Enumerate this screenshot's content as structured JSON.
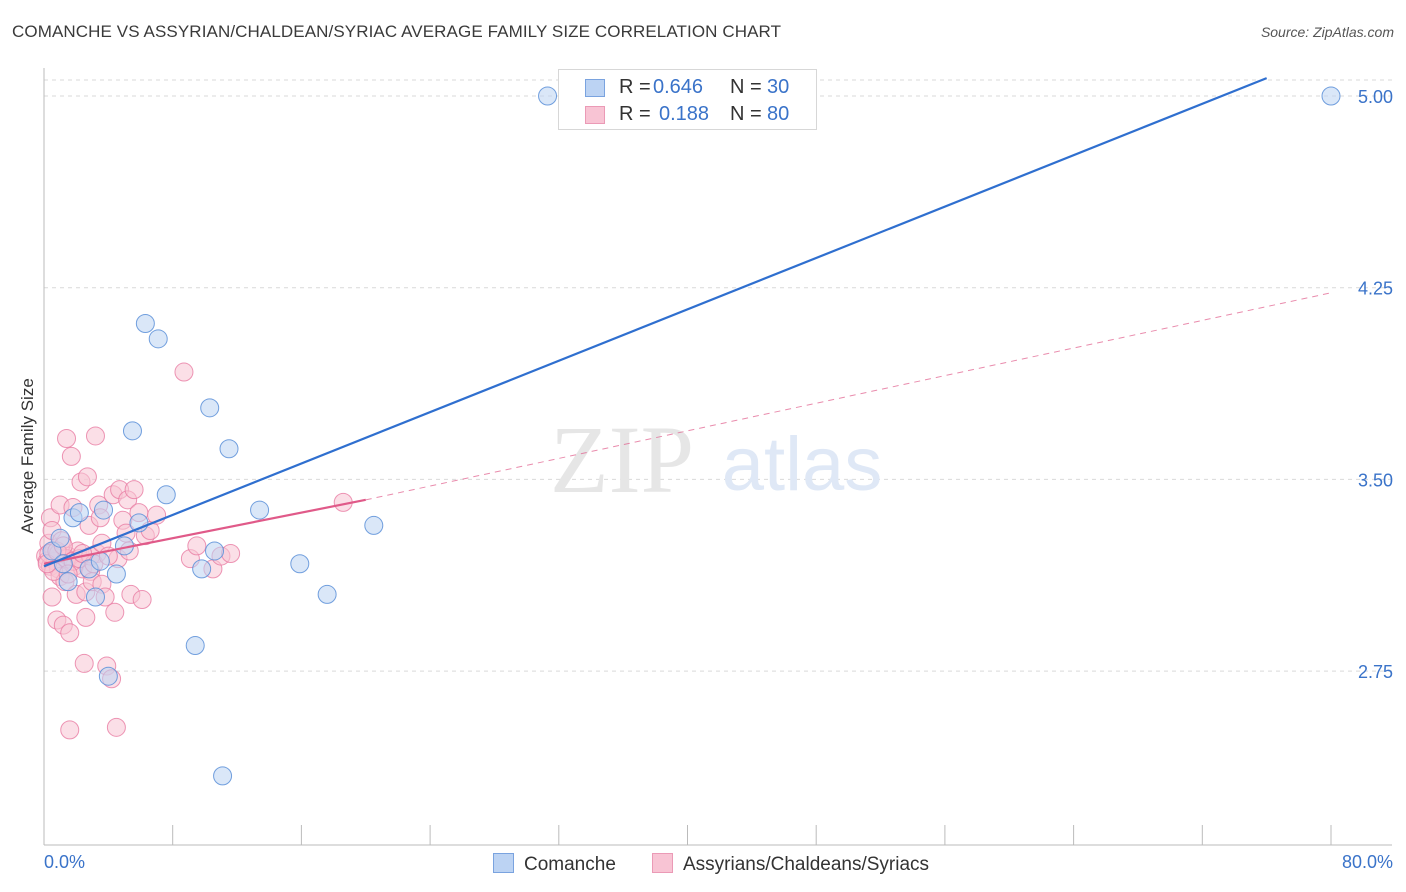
{
  "title": "COMANCHE VS ASSYRIAN/CHALDEAN/SYRIAC AVERAGE FAMILY SIZE CORRELATION CHART",
  "source": "Source: ZipAtlas.com",
  "watermark": {
    "zip": "ZIP",
    "atlas": "atlas"
  },
  "colors": {
    "blue": "#5b8fd8",
    "blue_fill": "#bcd3f3",
    "blue_line": "#2f6fcf",
    "pink": "#e87ca2",
    "pink_fill": "#f8c4d4",
    "pink_line": "#e05a89",
    "axis_text": "#3a73c9",
    "grid": "#d9d9d9"
  },
  "legend": {
    "rows": [
      {
        "r_label": "R =",
        "r_value": "0.646",
        "n_label": "N =",
        "n_value": "30"
      },
      {
        "r_label": "R =",
        "r_value": "0.188",
        "n_label": "N =",
        "n_value": "80"
      }
    ]
  },
  "bottom_legend": [
    {
      "label": "Comanche"
    },
    {
      "label": "Assyrians/Chaldeans/Syriacs"
    }
  ],
  "chart_data": {
    "type": "scatter",
    "title": "COMANCHE VS ASSYRIAN/CHALDEAN/SYRIAC AVERAGE FAMILY SIZE CORRELATION CHART",
    "xlabel": "",
    "ylabel": "Average Family Size",
    "xlim": [
      0,
      80
    ],
    "ylim": [
      2.0,
      5.1
    ],
    "x_tick_labels": [
      "0.0%",
      "80.0%"
    ],
    "y_ticks": [
      2.75,
      3.5,
      4.25,
      5.0
    ],
    "y_tick_labels": [
      "2.75",
      "3.50",
      "4.25",
      "5.00"
    ],
    "grid": true,
    "series": [
      {
        "name": "Comanche",
        "color": "#5b8fd8",
        "points": [
          [
            0.5,
            3.22
          ],
          [
            1.0,
            3.27
          ],
          [
            1.5,
            3.1
          ],
          [
            1.8,
            3.35
          ],
          [
            2.2,
            3.37
          ],
          [
            2.8,
            3.15
          ],
          [
            3.2,
            3.04
          ],
          [
            3.5,
            3.18
          ],
          [
            3.7,
            3.38
          ],
          [
            4.0,
            2.73
          ],
          [
            4.5,
            3.13
          ],
          [
            5.0,
            3.24
          ],
          [
            5.5,
            3.69
          ],
          [
            5.9,
            3.33
          ],
          [
            6.3,
            4.11
          ],
          [
            7.1,
            4.05
          ],
          [
            7.6,
            3.44
          ],
          [
            9.4,
            2.85
          ],
          [
            9.8,
            3.15
          ],
          [
            10.3,
            3.78
          ],
          [
            10.6,
            3.22
          ],
          [
            11.1,
            2.34
          ],
          [
            11.5,
            3.62
          ],
          [
            13.4,
            3.38
          ],
          [
            15.9,
            3.17
          ],
          [
            17.6,
            3.05
          ],
          [
            20.5,
            3.32
          ],
          [
            31.3,
            5.0
          ],
          [
            80.0,
            5.0
          ],
          [
            1.2,
            3.17
          ]
        ],
        "trend": {
          "x": [
            0,
            76
          ],
          "y": [
            3.16,
            5.07
          ]
        }
      },
      {
        "name": "Assyrians/Chaldeans/Syriacs",
        "color": "#e87ca2",
        "points": [
          [
            0.1,
            3.2
          ],
          [
            0.2,
            3.18
          ],
          [
            0.3,
            3.25
          ],
          [
            0.4,
            3.35
          ],
          [
            0.4,
            3.16
          ],
          [
            0.5,
            3.3
          ],
          [
            0.5,
            3.04
          ],
          [
            0.6,
            3.22
          ],
          [
            0.7,
            3.18
          ],
          [
            0.8,
            2.95
          ],
          [
            0.9,
            3.15
          ],
          [
            1.0,
            3.4
          ],
          [
            1.0,
            3.12
          ],
          [
            1.1,
            3.26
          ],
          [
            1.2,
            2.93
          ],
          [
            1.3,
            3.1
          ],
          [
            1.4,
            3.66
          ],
          [
            1.5,
            3.2
          ],
          [
            1.6,
            2.52
          ],
          [
            1.6,
            2.9
          ],
          [
            1.7,
            3.59
          ],
          [
            1.8,
            3.39
          ],
          [
            1.9,
            3.16
          ],
          [
            2.0,
            3.05
          ],
          [
            2.1,
            3.22
          ],
          [
            2.3,
            3.49
          ],
          [
            2.4,
            3.15
          ],
          [
            2.5,
            2.78
          ],
          [
            2.6,
            3.06
          ],
          [
            2.6,
            2.96
          ],
          [
            2.7,
            3.51
          ],
          [
            2.8,
            3.32
          ],
          [
            2.9,
            3.14
          ],
          [
            3.0,
            3.1
          ],
          [
            3.2,
            3.67
          ],
          [
            3.3,
            3.21
          ],
          [
            3.4,
            3.4
          ],
          [
            3.5,
            3.35
          ],
          [
            3.6,
            3.09
          ],
          [
            3.8,
            3.04
          ],
          [
            3.9,
            2.77
          ],
          [
            4.2,
            2.72
          ],
          [
            4.3,
            3.44
          ],
          [
            4.4,
            2.98
          ],
          [
            4.5,
            2.53
          ],
          [
            4.6,
            3.19
          ],
          [
            4.7,
            3.46
          ],
          [
            4.9,
            3.34
          ],
          [
            5.1,
            3.29
          ],
          [
            5.2,
            3.42
          ],
          [
            5.4,
            3.05
          ],
          [
            5.6,
            3.46
          ],
          [
            5.9,
            3.37
          ],
          [
            6.1,
            3.03
          ],
          [
            6.3,
            3.28
          ],
          [
            6.6,
            3.3
          ],
          [
            7.0,
            3.36
          ],
          [
            8.7,
            3.92
          ],
          [
            9.1,
            3.19
          ],
          [
            9.5,
            3.24
          ],
          [
            10.5,
            3.15
          ],
          [
            11.0,
            3.2
          ],
          [
            11.6,
            3.21
          ],
          [
            18.6,
            3.41
          ],
          [
            0.3,
            3.21
          ],
          [
            0.6,
            3.14
          ],
          [
            0.9,
            3.21
          ],
          [
            1.4,
            3.19
          ],
          [
            1.8,
            3.18
          ],
          [
            2.2,
            3.19
          ],
          [
            2.9,
            3.2
          ],
          [
            3.1,
            3.17
          ],
          [
            0.2,
            3.17
          ],
          [
            0.8,
            3.22
          ],
          [
            1.2,
            3.24
          ],
          [
            1.5,
            3.13
          ],
          [
            2.4,
            3.21
          ],
          [
            3.6,
            3.25
          ],
          [
            4.0,
            3.2
          ],
          [
            5.3,
            3.22
          ]
        ],
        "trend": {
          "x": [
            0,
            20
          ],
          "y": [
            3.17,
            3.42
          ]
        },
        "trend_extension": {
          "x": [
            20,
            80
          ],
          "y": [
            3.42,
            4.23
          ]
        }
      }
    ]
  }
}
